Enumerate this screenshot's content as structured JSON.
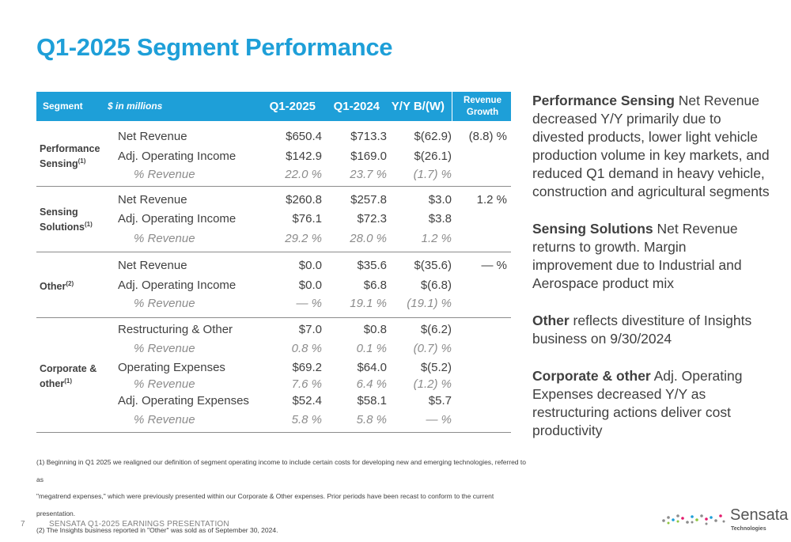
{
  "title": "Q1-2025 Segment Performance",
  "table": {
    "headers": {
      "segment": "Segment",
      "unit": "$ in millions",
      "q1_2025": "Q1-2025",
      "q1_2024": "Q1-2024",
      "yy": "Y/Y B/(W)",
      "rev_growth_1": "Revenue",
      "rev_growth_2": "Growth"
    },
    "groups": [
      {
        "name": "Performance Sensing",
        "name_l1": "Performance",
        "name_l2": "Sensing",
        "note": "(1)",
        "growth": "(8.8) %",
        "rows": [
          {
            "label": "Net Revenue",
            "q25": "$650.4",
            "q24": "$713.3",
            "yy": "$(62.9)"
          },
          {
            "label": "Adj. Operating Income",
            "q25": "$142.9",
            "q24": "$169.0",
            "yy": "$(26.1)"
          },
          {
            "label": "% Revenue",
            "q25": "22.0  %",
            "q24": "23.7  %",
            "yy": "(1.7) %"
          }
        ]
      },
      {
        "name": "Sensing Solutions",
        "name_l1": "Sensing",
        "name_l2": "Solutions",
        "note": "(1)",
        "growth": "1.2  %",
        "rows": [
          {
            "label": "Net Revenue",
            "q25": "$260.8",
            "q24": "$257.8",
            "yy": "$3.0"
          },
          {
            "label": "Adj. Operating Income",
            "q25": "$76.1",
            "q24": "$72.3",
            "yy": "$3.8"
          },
          {
            "label": "% Revenue",
            "q25": "29.2  %",
            "q24": "28.0  %",
            "yy": "1.2  %"
          }
        ]
      },
      {
        "name": "Other",
        "name_l1": "Other",
        "note": "(2)",
        "growth": "—  %",
        "rows": [
          {
            "label": "Net Revenue",
            "q25": "$0.0",
            "q24": "$35.6",
            "yy": "$(35.6)"
          },
          {
            "label": "Adj. Operating Income",
            "q25": "$0.0",
            "q24": "$6.8",
            "yy": "$(6.8)"
          },
          {
            "label": "% Revenue",
            "q25": "—  %",
            "q24": "19.1  %",
            "yy": "(19.1) %"
          }
        ]
      },
      {
        "name": "Corporate & other",
        "name_l1": "Corporate &",
        "name_l2": "other",
        "note": "(1)",
        "rows": [
          {
            "label": "Restructuring & Other",
            "q25": "$7.0",
            "q24": "$0.8",
            "yy": "$(6.2)"
          },
          {
            "label": "% Revenue",
            "q25": "0.8  %",
            "q24": "0.1  %",
            "yy": "(0.7) %"
          },
          {
            "label": "Operating Expenses",
            "q25": "$69.2",
            "q24": "$64.0",
            "yy": "$(5.2)"
          },
          {
            "label": "% Revenue",
            "q25": "7.6  %",
            "q24": "6.4  %",
            "yy": "(1.2) %"
          },
          {
            "label": "Adj. Operating Expenses",
            "q25": "$52.4",
            "q24": "$58.1",
            "yy": "$5.7"
          },
          {
            "label": "% Revenue",
            "q25": "5.8  %",
            "q24": "5.8  %",
            "yy": "—  %"
          }
        ]
      }
    ]
  },
  "commentary": [
    {
      "bold": "Performance Sensing",
      "text": " Net Revenue decreased Y/Y primarily due to divested products, lower light vehicle production volume in key markets, and reduced Q1 demand in heavy vehicle, construction and agricultural segments"
    },
    {
      "bold": "Sensing Solutions",
      "text": " Net Revenue returns to growth.  Margin improvement due to Industrial and Aerospace product mix"
    },
    {
      "bold": "Other",
      "text": " reflects divestiture of Insights business on 9/30/2024"
    },
    {
      "bold": "Corporate & other",
      "text": " Adj. Operating Expenses decreased Y/Y as restructuring actions deliver cost productivity"
    }
  ],
  "footnotes": [
    "(1) Beginning in Q1 2025 we realigned our definition of segment operating income to include certain costs for developing new and emerging technologies, referred to as",
    "\"megatrend expenses,\" which were previously presented within our Corporate & Other expenses. Prior periods have been recast to conform to the current presentation.",
    "(2) The Insights business reported in \"Other\" was sold as of September 30, 2024."
  ],
  "footer": {
    "page": "7",
    "text": "SENSATA  Q1-2025 EARNINGS PRESENTATION"
  },
  "logo": {
    "word": "Sensata",
    "sub": "Technologies"
  },
  "colors": {
    "accent": "#1e9fd8",
    "text": "#404040"
  }
}
